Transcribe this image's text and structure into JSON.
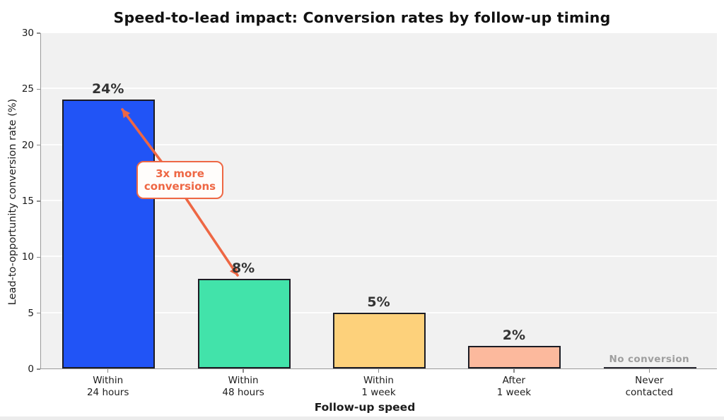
{
  "chart_data": {
    "type": "bar",
    "title": "Speed-to-lead impact: Conversion rates by follow-up timing",
    "xlabel": "Follow-up speed",
    "ylabel": "Lead-to-opportunity conversion rate (%)",
    "ylim": [
      0,
      30
    ],
    "yticks": [
      0,
      5,
      10,
      15,
      20,
      25,
      30
    ],
    "grid": true,
    "legend_position": "none",
    "categories": [
      "Within\n24 hours",
      "Within\n48 hours",
      "Within\n1 week",
      "After\n1 week",
      "Never\ncontacted"
    ],
    "values": [
      24,
      8,
      5,
      2,
      0
    ],
    "bar_value_labels": [
      "24%",
      "8%",
      "5%",
      "2%",
      "No conversion"
    ],
    "bar_colors": [
      "#2154f6",
      "#42e3aa",
      "#fdd17b",
      "#fcb99d",
      "none"
    ],
    "bar_edge_color": "#1c1c24",
    "plot_background": "#f1f1f1",
    "annotation": {
      "line1": "3x more",
      "line2": "conversions",
      "color": "#ee6744"
    }
  }
}
